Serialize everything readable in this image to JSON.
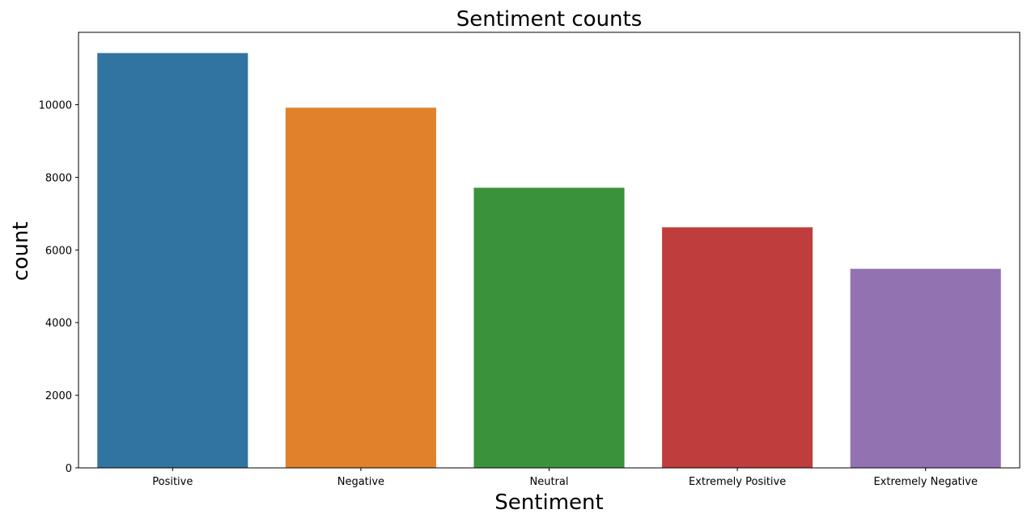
{
  "chart_data": {
    "type": "bar",
    "title": "Sentiment counts",
    "xlabel": "Sentiment",
    "ylabel": "count",
    "categories": [
      "Positive",
      "Negative",
      "Neutral",
      "Extremely Positive",
      "Extremely Negative"
    ],
    "values": [
      11422,
      9917,
      7713,
      6624,
      5481
    ],
    "colors": [
      "#3274a1",
      "#e1812c",
      "#3a923a",
      "#c03d3e",
      "#9372b2"
    ],
    "ylim": [
      0,
      11993
    ],
    "yticks": [
      0,
      2000,
      4000,
      6000,
      8000,
      10000
    ],
    "grid": false,
    "legend": "none"
  }
}
